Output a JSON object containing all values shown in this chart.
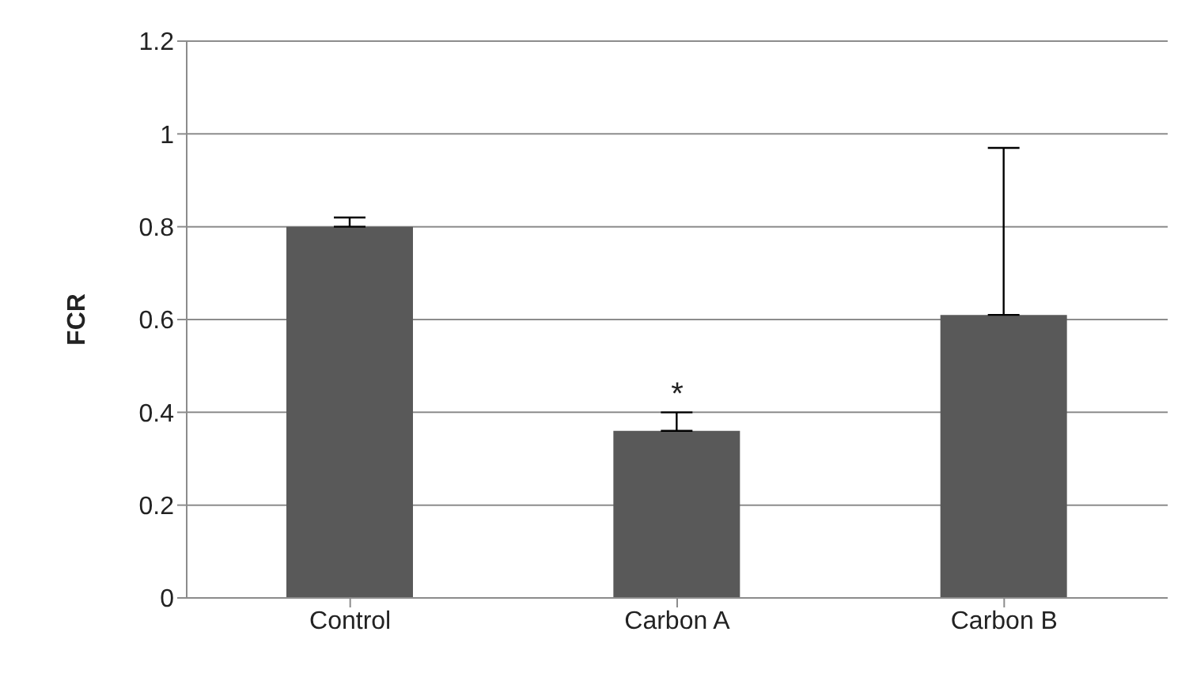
{
  "chart_data": {
    "type": "bar",
    "ylabel": "FCR",
    "categories": [
      "Control",
      "Carbon A",
      "Carbon B"
    ],
    "values": [
      0.8,
      0.36,
      0.61
    ],
    "errors": [
      [
        0.8,
        0.82
      ],
      [
        0.36,
        0.4
      ],
      [
        0.61,
        0.97
      ]
    ],
    "color": "#595959",
    "ylim": [
      0,
      1.2
    ],
    "yticks": [
      0,
      0.2,
      0.4,
      0.6,
      0.8,
      1,
      1.2
    ],
    "grid": "y",
    "annotations": [
      {
        "text": "*",
        "x": "Carbon A",
        "y": 0.4
      }
    ]
  }
}
